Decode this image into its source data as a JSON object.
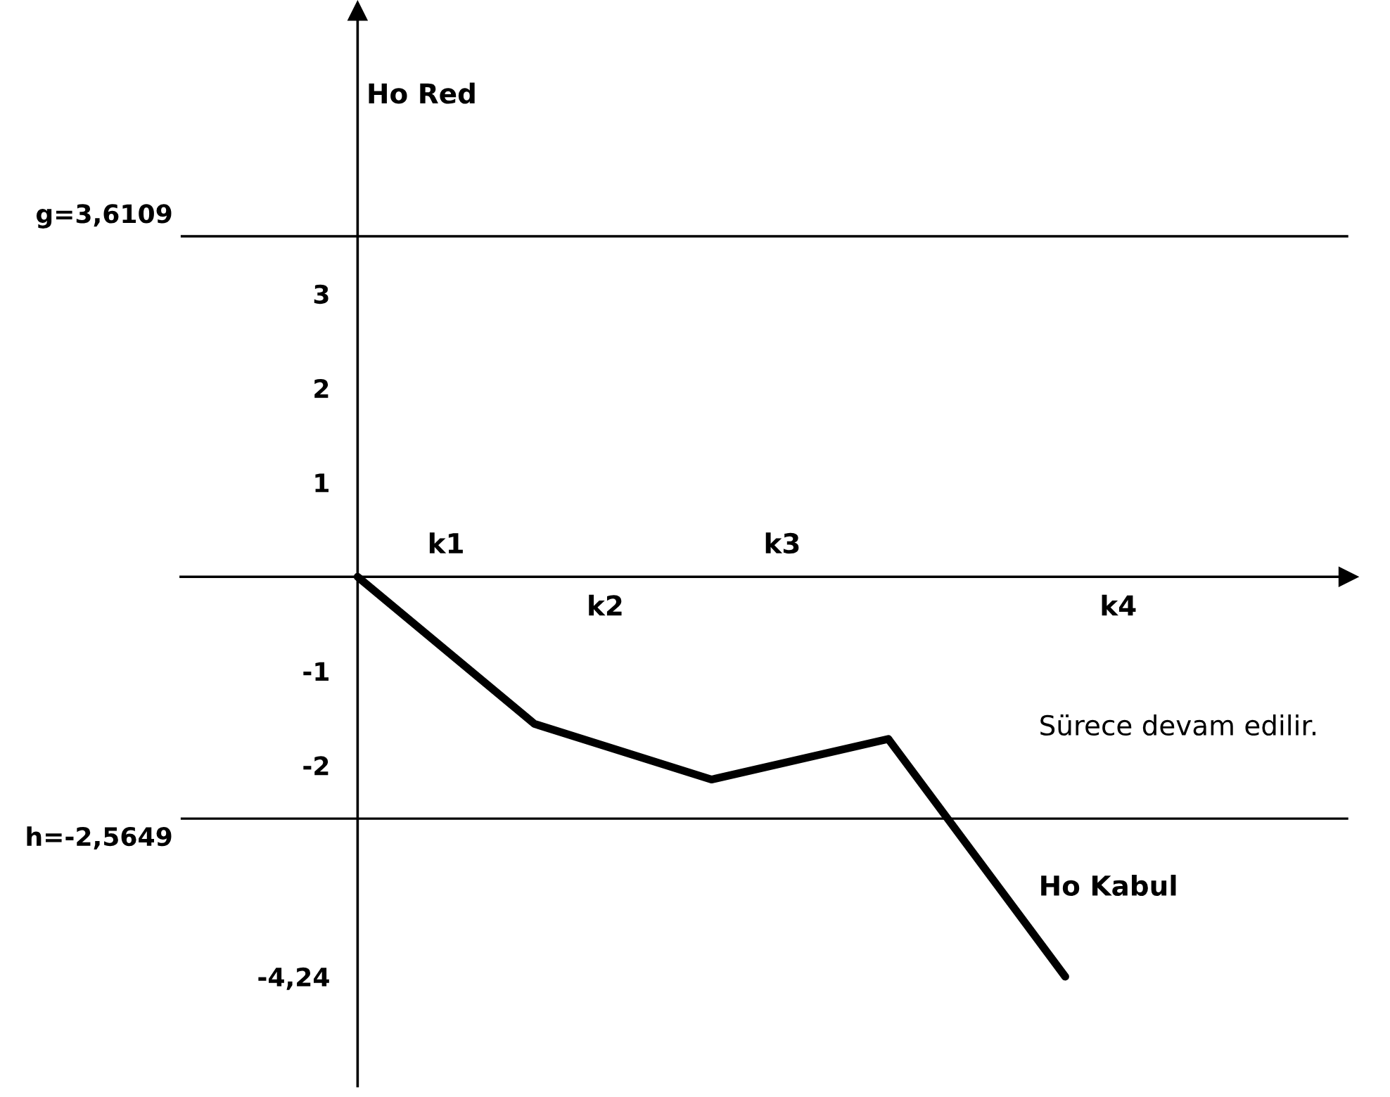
{
  "chart_data": {
    "type": "line",
    "categories": [
      null,
      null,
      null,
      null,
      null
    ],
    "series": [
      {
        "color": "#000000",
        "values": [
          0,
          -1.56,
          -2.15,
          -1.72,
          -4.24
        ]
      }
    ],
    "ylim": [
      -5.4,
      6.0
    ],
    "yticks": [
      {
        "value": 3,
        "label": "3"
      },
      {
        "value": 2,
        "label": "2"
      },
      {
        "value": 1,
        "label": "1"
      },
      {
        "value": -1,
        "label": "-1"
      },
      {
        "value": -2,
        "label": "-2"
      },
      {
        "value": -4.24,
        "label": "-4,24"
      }
    ],
    "ref_lines": [
      {
        "axis": "y",
        "value": 3.6109,
        "label": "g=3,6109",
        "color": "#000000"
      },
      {
        "axis": "y",
        "value": -2.5649,
        "label": "h=-2,5649",
        "color": "#000000"
      }
    ],
    "annotations": [
      "Ho Red",
      "Sürece devam edilir.",
      "Ho Kabul",
      "k1",
      "k2",
      "k3",
      "k4"
    ],
    "grid": false,
    "marker": "none",
    "line_style": "solid"
  }
}
